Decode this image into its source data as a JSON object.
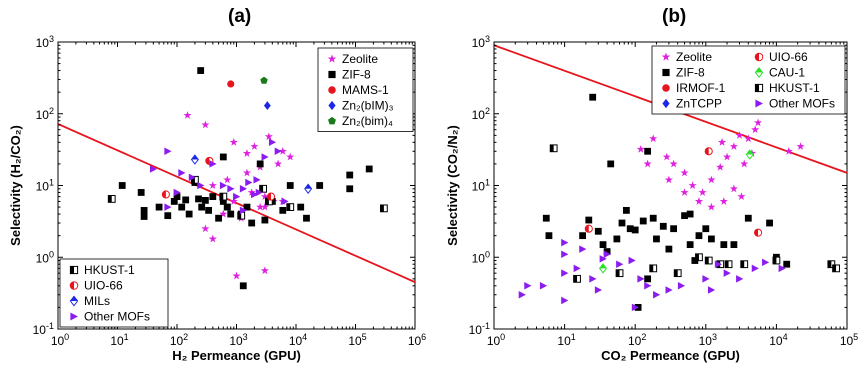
{
  "chart_data": [
    {
      "type": "scatter",
      "panel_label": "(a)",
      "xlabel": "H2 Permeance (GPU)",
      "ylabel": "Selectivity (H2/CO2)",
      "x_scale": "log",
      "y_scale": "log",
      "xlim": [
        1,
        1000000
      ],
      "ylim": [
        0.1,
        1000
      ],
      "x_ticks": [
        "10^0",
        "10^1",
        "10^2",
        "10^3",
        "10^4",
        "10^5",
        "10^6"
      ],
      "y_ticks": [
        "10^-1",
        "10^0",
        "10^1",
        "10^2",
        "10^3"
      ],
      "upper_bound_line": {
        "color": "#e8141c",
        "x": [
          1,
          1000000
        ],
        "y": [
          72,
          0.45
        ]
      },
      "legends": [
        {
          "position": "top-right",
          "series": [
            0,
            1,
            2,
            3,
            4
          ]
        },
        {
          "position": "bottom-left",
          "series": [
            5,
            6,
            7,
            8
          ]
        }
      ],
      "series": [
        {
          "name": "Zeolite",
          "marker": "star",
          "color": "#e020e0",
          "points": [
            [
              150,
              95
            ],
            [
              300,
              70
            ],
            [
              900,
              40
            ],
            [
              1500,
              28
            ],
            [
              2000,
              35
            ],
            [
              3500,
              48
            ],
            [
              6000,
              30
            ],
            [
              8000,
              25
            ],
            [
              5000,
              20
            ],
            [
              2500,
              18
            ],
            [
              1500,
              15
            ],
            [
              700,
              12
            ],
            [
              400,
              10
            ],
            [
              1800,
              8
            ],
            [
              3000,
              7
            ],
            [
              4200,
              6
            ],
            [
              6000,
              6
            ],
            [
              900,
              6
            ],
            [
              2500,
              5
            ],
            [
              600,
              4
            ],
            [
              1200,
              3.5
            ],
            [
              300,
              2.5
            ],
            [
              400,
              1.8
            ],
            [
              3000,
              5
            ],
            [
              1000,
              0.55
            ],
            [
              3000,
              0.65
            ]
          ]
        },
        {
          "name": "ZIF-8",
          "marker": "square",
          "color": "#000000",
          "points": [
            [
              12,
              10
            ],
            [
              25,
              8
            ],
            [
              28,
              4.5
            ],
            [
              28,
              3.7
            ],
            [
              50,
              5
            ],
            [
              70,
              3.8
            ],
            [
              90,
              6
            ],
            [
              100,
              7
            ],
            [
              120,
              5
            ],
            [
              140,
              6.3
            ],
            [
              160,
              4
            ],
            [
              200,
              11
            ],
            [
              230,
              6.5
            ],
            [
              260,
              5
            ],
            [
              300,
              6.2
            ],
            [
              340,
              4.5
            ],
            [
              400,
              7
            ],
            [
              500,
              3.5
            ],
            [
              600,
              6
            ],
            [
              700,
              5
            ],
            [
              800,
              4
            ],
            [
              1200,
              4
            ],
            [
              1500,
              5
            ],
            [
              1800,
              3
            ],
            [
              2500,
              20
            ],
            [
              3000,
              3.3
            ],
            [
              4000,
              6
            ],
            [
              6000,
              4.5
            ],
            [
              8000,
              10
            ],
            [
              12000,
              5
            ],
            [
              15000,
              3.5
            ],
            [
              25000,
              10
            ],
            [
              80000,
              14
            ],
            [
              170000,
              17
            ],
            [
              80000,
              9
            ],
            [
              1300,
              0.4
            ],
            [
              250,
              400
            ],
            [
              600,
              25
            ],
            [
              700,
              5
            ]
          ]
        },
        {
          "name": "MAMS-1",
          "marker": "circle",
          "color": "#e8141c",
          "points": [
            [
              800,
              260
            ]
          ]
        },
        {
          "name": "Zn2(bIM)3",
          "marker": "diamond",
          "color": "#1c28e8",
          "points": [
            [
              3300,
              130
            ]
          ]
        },
        {
          "name": "Zn2(bim)4",
          "marker": "pentagon",
          "color": "#1a7a1a",
          "points": [
            [
              2900,
              290
            ]
          ]
        },
        {
          "name": "HKUST-1",
          "marker": "half-square",
          "color": "#000000",
          "points": [
            [
              8,
              6.5
            ],
            [
              200,
              12
            ],
            [
              600,
              7
            ],
            [
              1200,
              3.8
            ],
            [
              2800,
              9
            ],
            [
              3500,
              6
            ],
            [
              8000,
              5
            ],
            [
              300000,
              4.8
            ]
          ]
        },
        {
          "name": "UIO-66",
          "marker": "half-circle",
          "color": "#e8141c",
          "points": [
            [
              65,
              7.5
            ],
            [
              350,
              22
            ],
            [
              3800,
              7
            ]
          ]
        },
        {
          "name": "MILs",
          "marker": "half-diamond",
          "color": "#1c28e8",
          "points": [
            [
              200,
              23
            ],
            [
              16000,
              9
            ]
          ]
        },
        {
          "name": "Other MOFs",
          "marker": "triangle-right",
          "color": "#8b1cf0",
          "points": [
            [
              40,
              17
            ],
            [
              100,
              8
            ],
            [
              70,
              30
            ],
            [
              120,
              15
            ],
            [
              180,
              13
            ],
            [
              250,
              10
            ],
            [
              400,
              20
            ],
            [
              600,
              10
            ],
            [
              800,
              9
            ],
            [
              1000,
              7
            ],
            [
              1300,
              9
            ],
            [
              1600,
              11
            ],
            [
              2000,
              7.5
            ],
            [
              2400,
              8
            ],
            [
              3000,
              25
            ],
            [
              4000,
              40
            ],
            [
              5000,
              30
            ],
            [
              6500,
              6
            ],
            [
              1300,
              4.5
            ],
            [
              70,
              5
            ],
            [
              2200,
              12
            ]
          ]
        }
      ]
    },
    {
      "type": "scatter",
      "panel_label": "(b)",
      "xlabel": "CO2 Permeance (GPU)",
      "ylabel": "Selectivity (CO2/N2)",
      "x_scale": "log",
      "y_scale": "log",
      "xlim": [
        1,
        100000
      ],
      "ylim": [
        0.1,
        1000
      ],
      "x_ticks": [
        "10^0",
        "10^1",
        "10^2",
        "10^3",
        "10^4",
        "10^5"
      ],
      "y_ticks": [
        "10^-1",
        "10^0",
        "10^1",
        "10^2",
        "10^3"
      ],
      "upper_bound_line": {
        "color": "#e8141c",
        "x": [
          1,
          100000
        ],
        "y": [
          900,
          15
        ]
      },
      "legends": [
        {
          "position": "top",
          "columns": 2,
          "series": [
            0,
            1,
            2,
            3,
            4,
            5,
            6,
            7
          ]
        }
      ],
      "series": [
        {
          "name": "Zeolite",
          "marker": "star",
          "color": "#e020e0",
          "points": [
            [
              120,
              32
            ],
            [
              180,
              45
            ],
            [
              280,
              25
            ],
            [
              350,
              20
            ],
            [
              500,
              15
            ],
            [
              650,
              10
            ],
            [
              900,
              8
            ],
            [
              1200,
              12
            ],
            [
              1600,
              18
            ],
            [
              2000,
              25
            ],
            [
              2500,
              35
            ],
            [
              3000,
              50
            ],
            [
              4000,
              45
            ],
            [
              5000,
              60
            ],
            [
              5500,
              75
            ],
            [
              4500,
              28
            ],
            [
              3500,
              20
            ],
            [
              2500,
              9
            ],
            [
              1800,
              6
            ],
            [
              1200,
              5
            ],
            [
              800,
              6
            ],
            [
              500,
              8
            ],
            [
              300,
              12
            ],
            [
              150,
              20
            ],
            [
              15000,
              30
            ],
            [
              22000,
              35
            ],
            [
              1700,
              40
            ],
            [
              3200,
              7
            ]
          ]
        },
        {
          "name": "ZIF-8",
          "marker": "square",
          "color": "#000000",
          "points": [
            [
              5.5,
              3.5
            ],
            [
              6,
              2
            ],
            [
              18,
              2
            ],
            [
              22,
              3.3
            ],
            [
              30,
              2.3
            ],
            [
              35,
              1.5
            ],
            [
              40,
              1.2
            ],
            [
              55,
              1.8
            ],
            [
              65,
              3
            ],
            [
              75,
              4.5
            ],
            [
              85,
              2.5
            ],
            [
              100,
              2.4
            ],
            [
              130,
              3.2
            ],
            [
              150,
              0.5
            ],
            [
              180,
              3.5
            ],
            [
              200,
              1.8
            ],
            [
              250,
              2.7
            ],
            [
              300,
              1.3
            ],
            [
              350,
              2.5
            ],
            [
              500,
              3.8
            ],
            [
              600,
              1.5
            ],
            [
              700,
              0.9
            ],
            [
              800,
              2
            ],
            [
              1000,
              2.5
            ],
            [
              1200,
              1.8
            ],
            [
              1800,
              1.5
            ],
            [
              2500,
              1.5
            ],
            [
              4000,
              3.5
            ],
            [
              8000,
              3
            ],
            [
              10000,
              1
            ],
            [
              14000,
              0.8
            ],
            [
              25,
              170
            ],
            [
              45,
              20
            ],
            [
              150,
              30
            ],
            [
              110,
              0.2
            ],
            [
              600,
              4
            ]
          ]
        },
        {
          "name": "IRMOF-1",
          "marker": "circle",
          "color": "#e8141c",
          "points": [
            [
              600,
              420
            ]
          ]
        },
        {
          "name": "ZnTCPP",
          "marker": "diamond",
          "color": "#1c28e8",
          "points": []
        },
        {
          "name": "UIO-66",
          "marker": "half-circle",
          "color": "#e8141c",
          "points": [
            [
              22,
              2.5
            ],
            [
              1100,
              30
            ],
            [
              5500,
              2.2
            ]
          ]
        },
        {
          "name": "CAU-1",
          "marker": "half-diamond",
          "color": "#2be02b",
          "points": [
            [
              35,
              0.7
            ],
            [
              4200,
              27
            ]
          ]
        },
        {
          "name": "HKUST-1",
          "marker": "half-square",
          "color": "#000000",
          "points": [
            [
              7,
              33
            ],
            [
              15,
              0.5
            ],
            [
              60,
              0.6
            ],
            [
              180,
              0.7
            ],
            [
              400,
              0.6
            ],
            [
              800,
              1
            ],
            [
              1100,
              0.9
            ],
            [
              1600,
              0.8
            ],
            [
              2100,
              0.8
            ],
            [
              3500,
              0.8
            ],
            [
              10000,
              0.9
            ],
            [
              60000,
              0.8
            ],
            [
              70000,
              0.7
            ]
          ]
        },
        {
          "name": "Other MOFs",
          "marker": "triangle-right",
          "color": "#8b1cf0",
          "points": [
            [
              2.5,
              0.3
            ],
            [
              3,
              0.4
            ],
            [
              5,
              0.4
            ],
            [
              10,
              0.6
            ],
            [
              10,
              1.1
            ],
            [
              10,
              1.6
            ],
            [
              18,
              1.3
            ],
            [
              15,
              0.7
            ],
            [
              25,
              0.5
            ],
            [
              30,
              0.35
            ],
            [
              35,
              0.95
            ],
            [
              40,
              1.1
            ],
            [
              60,
              0.8
            ],
            [
              90,
              0.9
            ],
            [
              120,
              0.5
            ],
            [
              150,
              0.4
            ],
            [
              200,
              0.3
            ],
            [
              300,
              0.35
            ],
            [
              450,
              0.4
            ],
            [
              1000,
              0.5
            ],
            [
              1200,
              0.35
            ],
            [
              1500,
              0.8
            ],
            [
              2000,
              0.6
            ],
            [
              3000,
              0.5
            ],
            [
              5000,
              0.7
            ],
            [
              7000,
              0.85
            ],
            [
              12000,
              0.7
            ],
            [
              10,
              0.25
            ],
            [
              100,
              0.2
            ]
          ]
        }
      ]
    }
  ]
}
